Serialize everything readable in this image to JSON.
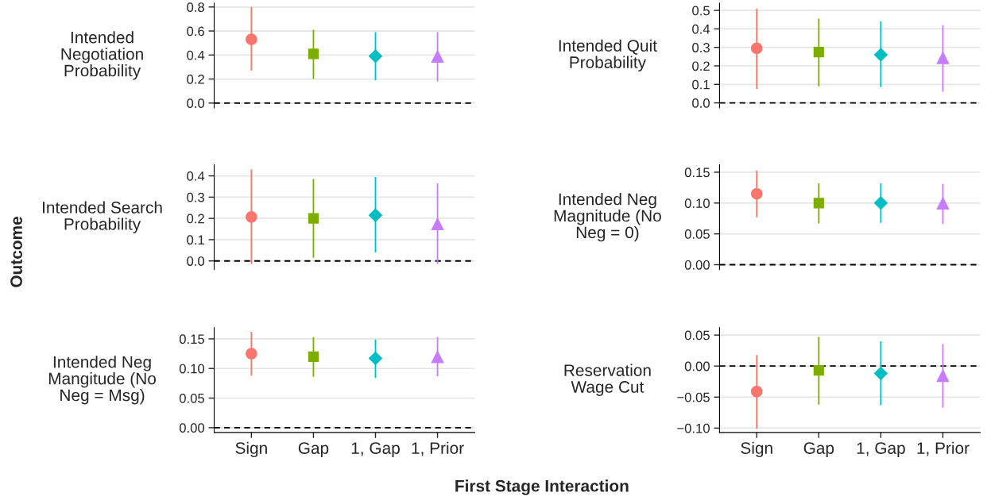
{
  "chart_data": [
    {
      "type": "scatter",
      "ylabel": "Intended\nNegotiation\nProbability",
      "annotations": [
        "Outcome",
        "First Stage Interaction"
      ],
      "categories": [
        null,
        null,
        null,
        null
      ],
      "tick_labels": "y",
      "ylim": [
        -0.04,
        0.833
      ],
      "yticks": [
        {
          "value": 0,
          "label": "0.0"
        },
        0.2,
        0.4,
        0.6,
        0.8
      ],
      "grid": "y",
      "ref_lines": [
        {
          "axis": "y",
          "value": 0,
          "line_style": "dashed",
          "color": "#000000"
        }
      ],
      "series": [
        {
          "color": "#f8766d",
          "marker": "circle",
          "values": [
            0.53,
            null,
            null,
            null
          ],
          "errors": [
            [
              0.27,
              0.8
            ],
            null,
            null,
            null
          ]
        },
        {
          "color": "#7cae00",
          "marker": "square",
          "values": [
            null,
            0.41,
            null,
            null
          ],
          "errors": [
            null,
            [
              0.2,
              0.61
            ],
            null,
            null
          ]
        },
        {
          "color": "#00bfc4",
          "marker": "diamond",
          "values": [
            null,
            null,
            0.39,
            null
          ],
          "errors": [
            null,
            null,
            [
              0.19,
              0.59
            ],
            null
          ]
        },
        {
          "color": "#c77cff",
          "marker": "triangle",
          "values": [
            null,
            null,
            null,
            0.39
          ],
          "errors": [
            null,
            null,
            null,
            [
              0.18,
              0.59
            ]
          ]
        }
      ]
    },
    {
      "type": "scatter",
      "ylabel": "Intended Quit\nProbability",
      "categories": [
        null,
        null,
        null,
        null
      ],
      "tick_labels": "y",
      "ylim": [
        -0.027,
        0.54
      ],
      "yticks": [
        {
          "value": 0,
          "label": "0.0"
        },
        0.1,
        0.2,
        0.3,
        0.4,
        0.5
      ],
      "grid": "y",
      "ref_lines": [
        {
          "axis": "y",
          "value": 0,
          "line_style": "dashed",
          "color": "#000000"
        }
      ],
      "series": [
        {
          "color": "#f8766d",
          "marker": "circle",
          "values": [
            0.295,
            null,
            null,
            null
          ],
          "errors": [
            [
              0.075,
              0.51
            ],
            null,
            null,
            null
          ]
        },
        {
          "color": "#7cae00",
          "marker": "square",
          "values": [
            null,
            0.275,
            null,
            null
          ],
          "errors": [
            null,
            [
              0.09,
              0.455
            ],
            null,
            null
          ]
        },
        {
          "color": "#00bfc4",
          "marker": "diamond",
          "values": [
            null,
            null,
            0.26,
            null
          ],
          "errors": [
            null,
            null,
            [
              0.085,
              0.44
            ],
            null
          ]
        },
        {
          "color": "#c77cff",
          "marker": "triangle",
          "values": [
            null,
            null,
            null,
            0.245
          ],
          "errors": [
            null,
            null,
            null,
            [
              0.06,
              0.42
            ]
          ]
        }
      ]
    },
    {
      "type": "scatter",
      "ylabel": "Intended Search\nProbability",
      "categories": [
        null,
        null,
        null,
        null
      ],
      "tick_labels": "y",
      "ylim": [
        -0.041,
        0.452
      ],
      "yticks": [
        {
          "value": 0,
          "label": "0.0"
        },
        0.1,
        0.2,
        0.3,
        0.4
      ],
      "grid": "y",
      "ref_lines": [
        {
          "axis": "y",
          "value": 0,
          "line_style": "dashed",
          "color": "#000000"
        }
      ],
      "series": [
        {
          "color": "#f8766d",
          "marker": "circle",
          "values": [
            0.207,
            null,
            null,
            null
          ],
          "errors": [
            [
              -0.015,
              0.43
            ],
            null,
            null,
            null
          ]
        },
        {
          "color": "#7cae00",
          "marker": "square",
          "values": [
            null,
            0.2,
            null,
            null
          ],
          "errors": [
            null,
            [
              0.015,
              0.385
            ],
            null,
            null
          ]
        },
        {
          "color": "#00bfc4",
          "marker": "diamond",
          "values": [
            null,
            null,
            0.215,
            null
          ],
          "errors": [
            null,
            null,
            [
              0.04,
              0.395
            ],
            null
          ]
        },
        {
          "color": "#c77cff",
          "marker": "triangle",
          "values": [
            null,
            null,
            null,
            0.175
          ],
          "errors": [
            null,
            null,
            null,
            [
              -0.015,
              0.365
            ]
          ]
        }
      ]
    },
    {
      "type": "scatter",
      "ylabel": "Intended Neg\nMagnitude (No\nNeg = 0)",
      "categories": [
        null,
        null,
        null,
        null
      ],
      "tick_labels": "y",
      "ylim": [
        -0.008,
        0.162
      ],
      "yticks": [
        {
          "value": 0,
          "label": "0.00"
        },
        0.05,
        {
          "value": 0.1,
          "label": "0.10"
        },
        0.15
      ],
      "grid": "y",
      "ref_lines": [
        {
          "axis": "y",
          "value": 0,
          "line_style": "dashed",
          "color": "#000000"
        }
      ],
      "series": [
        {
          "color": "#f8766d",
          "marker": "circle",
          "values": [
            0.115,
            null,
            null,
            null
          ],
          "errors": [
            [
              0.077,
              0.153
            ],
            null,
            null,
            null
          ]
        },
        {
          "color": "#7cae00",
          "marker": "square",
          "values": [
            null,
            0.1,
            null,
            null
          ],
          "errors": [
            null,
            [
              0.067,
              0.132
            ],
            null,
            null
          ]
        },
        {
          "color": "#00bfc4",
          "marker": "diamond",
          "values": [
            null,
            null,
            0.1,
            null
          ],
          "errors": [
            null,
            null,
            [
              0.068,
              0.132
            ],
            null
          ]
        },
        {
          "color": "#c77cff",
          "marker": "triangle",
          "values": [
            null,
            null,
            null,
            0.1
          ],
          "errors": [
            null,
            null,
            null,
            [
              0.066,
              0.131
            ]
          ]
        }
      ]
    },
    {
      "type": "scatter",
      "ylabel": "Intended Neg\nMangitude (No\nNeg = Msg)",
      "categories": [
        "Sign",
        "Gap",
        "1, Gap",
        "1, Prior"
      ],
      "ylim": [
        -0.008,
        0.169
      ],
      "yticks": [
        {
          "value": 0,
          "label": "0.00"
        },
        0.05,
        {
          "value": 0.1,
          "label": "0.10"
        },
        0.15
      ],
      "grid": "y",
      "ref_lines": [
        {
          "axis": "y",
          "value": 0,
          "line_style": "dashed",
          "color": "#000000"
        }
      ],
      "series": [
        {
          "color": "#f8766d",
          "marker": "circle",
          "values": [
            0.125,
            null,
            null,
            null
          ],
          "errors": [
            [
              0.088,
              0.162
            ],
            null,
            null,
            null
          ]
        },
        {
          "color": "#7cae00",
          "marker": "square",
          "values": [
            null,
            0.12,
            null,
            null
          ],
          "errors": [
            null,
            [
              0.086,
              0.153
            ],
            null,
            null
          ]
        },
        {
          "color": "#00bfc4",
          "marker": "diamond",
          "values": [
            null,
            null,
            0.117,
            null
          ],
          "errors": [
            null,
            null,
            [
              0.084,
              0.149
            ],
            null
          ]
        },
        {
          "color": "#c77cff",
          "marker": "triangle",
          "values": [
            null,
            null,
            null,
            0.12
          ],
          "errors": [
            null,
            null,
            null,
            [
              0.087,
              0.153
            ]
          ]
        }
      ]
    },
    {
      "type": "scatter",
      "ylabel": "Reservation\nWage Cut",
      "categories": [
        "Sign",
        "Gap",
        "1, Gap",
        "1, Prior"
      ],
      "ylim": [
        -0.107,
        0.062
      ],
      "yticks": [
        {
          "value": -0.1,
          "label": "−0.10"
        },
        {
          "value": -0.05,
          "label": "−0.05"
        },
        {
          "value": 0,
          "label": "0.00"
        },
        0.05
      ],
      "grid": "y",
      "ref_lines": [
        {
          "axis": "y",
          "value": 0,
          "line_style": "dashed",
          "color": "#000000"
        }
      ],
      "series": [
        {
          "color": "#f8766d",
          "marker": "circle",
          "values": [
            -0.041,
            null,
            null,
            null
          ],
          "errors": [
            [
              -0.101,
              0.018
            ],
            null,
            null,
            null
          ]
        },
        {
          "color": "#7cae00",
          "marker": "square",
          "values": [
            null,
            -0.007,
            null,
            null
          ],
          "errors": [
            null,
            [
              -0.062,
              0.047
            ],
            null,
            null
          ]
        },
        {
          "color": "#00bfc4",
          "marker": "diamond",
          "values": [
            null,
            null,
            -0.012,
            null
          ],
          "errors": [
            null,
            null,
            [
              -0.063,
              0.04
            ],
            null
          ]
        },
        {
          "color": "#c77cff",
          "marker": "triangle",
          "values": [
            null,
            null,
            null,
            -0.015
          ],
          "errors": [
            null,
            null,
            null,
            [
              -0.067,
              0.035
            ]
          ]
        }
      ]
    }
  ]
}
